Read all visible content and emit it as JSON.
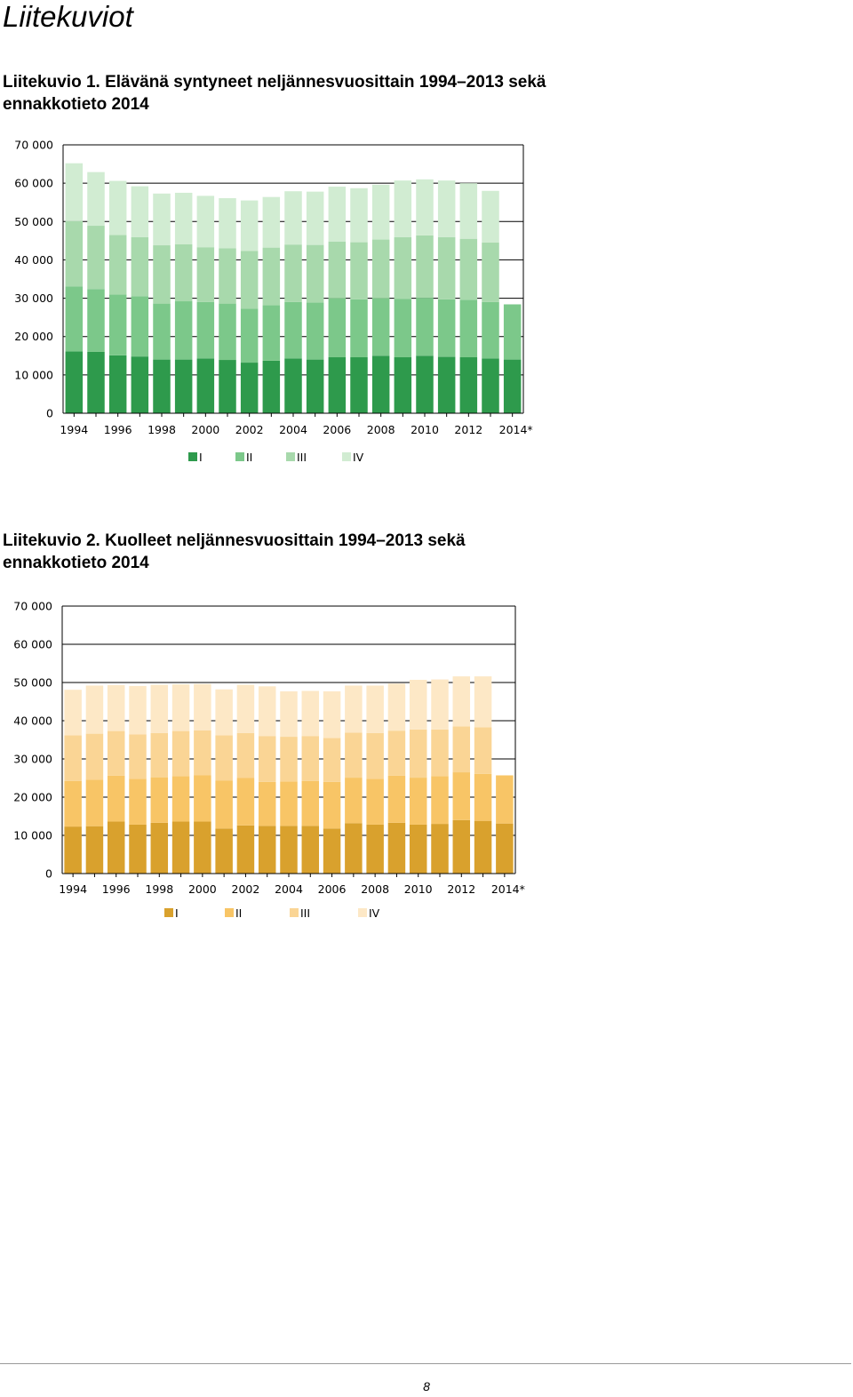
{
  "page": {
    "section_title": "Liitekuviot",
    "page_number": "8"
  },
  "figures": [
    {
      "caption_line1": "Liitekuvio 1. Elävänä syntyneet neljännesvuosittain 1994–2013 sekä",
      "caption_line2": "ennakkotieto 2014"
    },
    {
      "caption_line1": "Liitekuvio 2. Kuolleet neljännesvuosittain 1994–2013 sekä",
      "caption_line2": "ennakkotieto 2014"
    }
  ],
  "chart_data": [
    {
      "type": "bar",
      "stacked": true,
      "categories": [
        "1994",
        "1995",
        "1996",
        "1997",
        "1998",
        "1999",
        "2000",
        "2001",
        "2002",
        "2003",
        "2004",
        "2005",
        "2006",
        "2007",
        "2008",
        "2009",
        "2010",
        "2011",
        "2012",
        "2013",
        "2014*"
      ],
      "x_tick_labels": [
        "1994",
        "1996",
        "1998",
        "2000",
        "2002",
        "2004",
        "2006",
        "2008",
        "2010",
        "2012",
        "2014*"
      ],
      "y_tick_labels": [
        "0",
        "10 000",
        "20 000",
        "30 000",
        "40 000",
        "50 000",
        "60 000",
        "70 000"
      ],
      "ylim": [
        0,
        70000
      ],
      "grid": true,
      "legend_position": "bottom",
      "series": [
        {
          "name": "I",
          "color": "#2e9a4c",
          "values": [
            16100,
            16000,
            15100,
            14800,
            14000,
            14000,
            14300,
            13900,
            13200,
            13700,
            14300,
            14000,
            14600,
            14600,
            15000,
            14600,
            15000,
            14700,
            14600,
            14300,
            14000
          ]
        },
        {
          "name": "II",
          "color": "#7cc88a",
          "values": [
            17000,
            16400,
            15900,
            15700,
            14600,
            15200,
            14700,
            14700,
            14100,
            14500,
            14700,
            14900,
            15400,
            15100,
            15000,
            15200,
            15100,
            15000,
            15000,
            14700,
            14400
          ]
        },
        {
          "name": "III",
          "color": "#a8d9ac",
          "values": [
            17000,
            16500,
            15500,
            15400,
            15200,
            14900,
            14300,
            14400,
            15000,
            15000,
            15000,
            15000,
            14800,
            14900,
            15300,
            16100,
            16300,
            16200,
            15900,
            15500,
            0
          ]
        },
        {
          "name": "IV",
          "color": "#d1ecd2",
          "values": [
            15100,
            14000,
            14100,
            13300,
            13500,
            13400,
            13400,
            13100,
            13200,
            13200,
            13900,
            13900,
            14300,
            14100,
            14300,
            14800,
            14600,
            14800,
            14500,
            13500,
            0
          ]
        }
      ]
    },
    {
      "type": "bar",
      "stacked": true,
      "categories": [
        "1994",
        "1995",
        "1996",
        "1997",
        "1998",
        "1999",
        "2000",
        "2001",
        "2002",
        "2003",
        "2004",
        "2005",
        "2006",
        "2007",
        "2008",
        "2009",
        "2010",
        "2011",
        "2012",
        "2013",
        "2014*"
      ],
      "x_tick_labels": [
        "1994",
        "1996",
        "1998",
        "2000",
        "2002",
        "2004",
        "2006",
        "2008",
        "2010",
        "2012",
        "2014*"
      ],
      "y_tick_labels": [
        "0",
        "10 000",
        "20 000",
        "30 000",
        "40 000",
        "50 000",
        "60 000",
        "70 000"
      ],
      "ylim": [
        0,
        70000
      ],
      "grid": true,
      "legend_position": "bottom",
      "series": [
        {
          "name": "I",
          "color": "#d9a12d",
          "values": [
            12300,
            12400,
            13600,
            12800,
            13300,
            13600,
            13600,
            11800,
            12600,
            12500,
            12500,
            12500,
            11800,
            13200,
            12800,
            13300,
            12800,
            13000,
            14000,
            13800,
            13100
          ]
        },
        {
          "name": "II",
          "color": "#f8c566",
          "values": [
            11900,
            12200,
            12000,
            12000,
            11900,
            11900,
            12100,
            12500,
            12400,
            11500,
            11600,
            11700,
            12200,
            11900,
            12000,
            12300,
            12300,
            12500,
            12500,
            12300,
            12600
          ]
        },
        {
          "name": "III",
          "color": "#fad595",
          "values": [
            12000,
            12000,
            11700,
            11600,
            11600,
            11800,
            11800,
            11900,
            11800,
            12000,
            11700,
            11800,
            11500,
            11800,
            12000,
            11800,
            12600,
            12200,
            12000,
            12200,
            0
          ]
        },
        {
          "name": "IV",
          "color": "#fde8c6",
          "values": [
            11900,
            12600,
            12000,
            12700,
            12600,
            12200,
            12100,
            12000,
            12600,
            13000,
            11900,
            11800,
            12200,
            12300,
            12400,
            12300,
            13000,
            13100,
            13100,
            13300,
            0
          ]
        }
      ]
    }
  ]
}
